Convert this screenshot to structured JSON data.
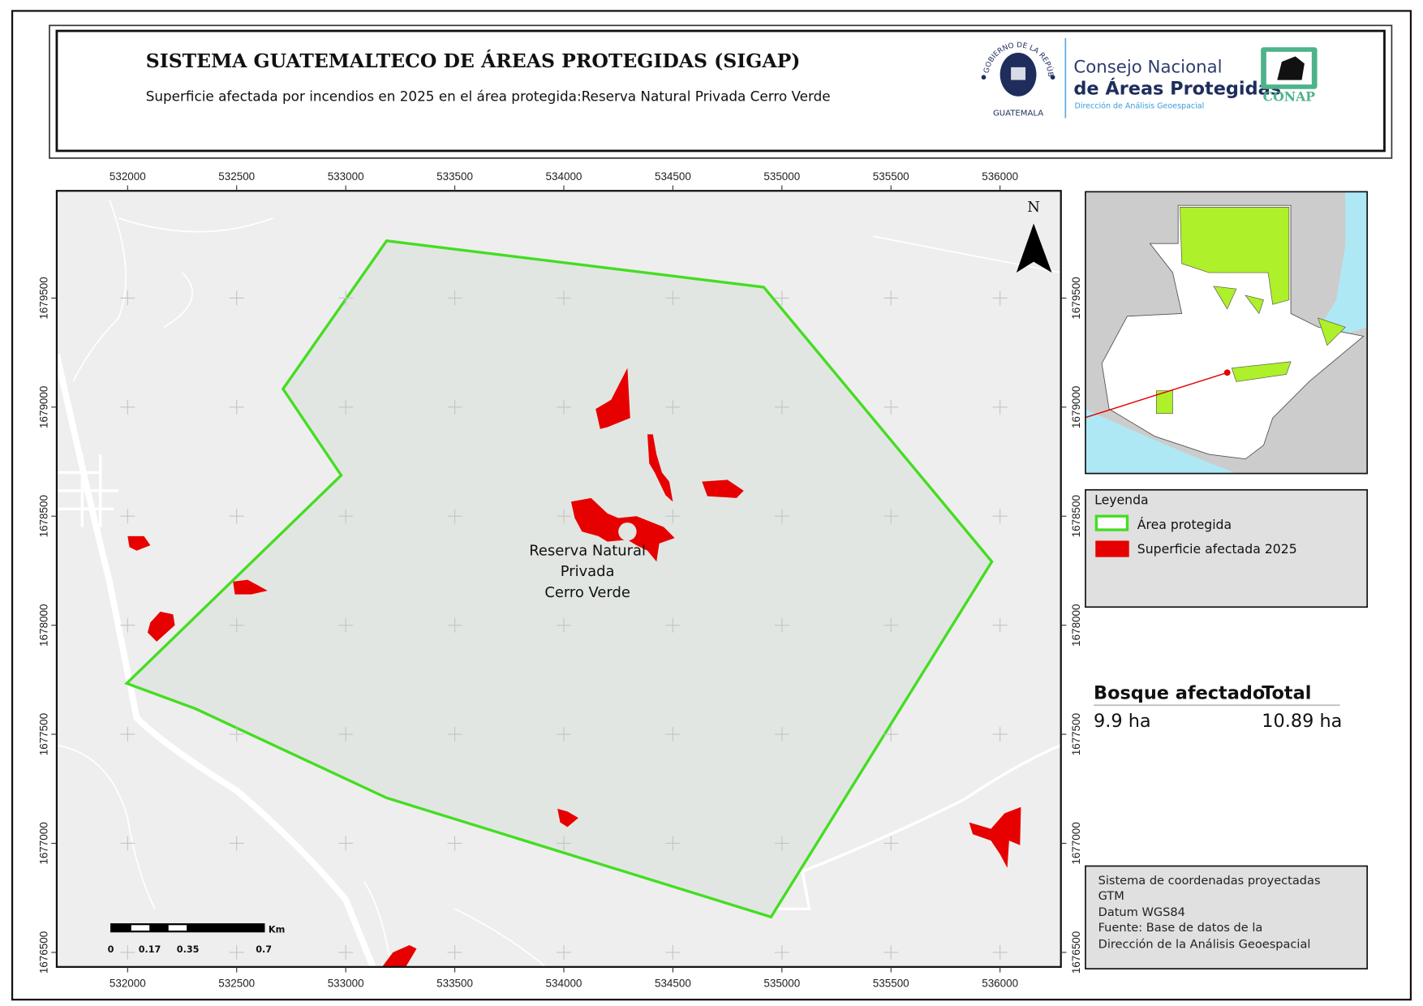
{
  "header": {
    "title": "SISTEMA GUATEMALTECO DE ÁREAS PROTEGIDAS  (SIGAP)",
    "subtitle": "Superficie afectada por incendios en 2025 en el área protegida:Reserva Natural Privada Cerro Verde",
    "seal_text_top": "GOBIERNO DE LA REPÚBLICA",
    "seal_text_bottom": "GUATEMALA",
    "org_line1": "Consejo Nacional",
    "org_line2": "de Áreas Protegidas",
    "org_line3": "Dirección de Análisis Geoespacial",
    "conap_label": "CONAP"
  },
  "map": {
    "x_ticks": [
      "532000",
      "532500",
      "533000",
      "533500",
      "534000",
      "534500",
      "535000",
      "535500",
      "536000"
    ],
    "y_ticks": [
      "1679500",
      "1679000",
      "1678500",
      "1678000",
      "1677500",
      "1677000",
      "1676500"
    ],
    "area_label": [
      "Reserva Natural",
      "Privada",
      "Cerro Verde"
    ],
    "north_label": "N",
    "scale_labels": [
      "0",
      "0.17",
      "0.35",
      "0.7"
    ],
    "scale_unit": "Km",
    "colors": {
      "protected_area": "#44dd22",
      "burned": "#e60000",
      "area_fill": "#e2e6e2",
      "background": "#eeeeee"
    }
  },
  "legend": {
    "title": "Leyenda",
    "items": [
      {
        "label": "Área protegida",
        "type": "outline",
        "color": "#44dd22"
      },
      {
        "label": "Superficie afectada 2025",
        "type": "fill",
        "color": "#e60000"
      }
    ]
  },
  "stats": {
    "headers": [
      "Bosque afectado",
      "Total"
    ],
    "values": [
      "9.9 ha",
      "10.89 ha"
    ]
  },
  "info": {
    "lines": [
      "Sistema de coordenadas proyectadas",
      "GTM",
      "Datum WGS84",
      "Fuente: Base de datos de la",
      "Dirección de la Análisis Geoespacial"
    ]
  }
}
